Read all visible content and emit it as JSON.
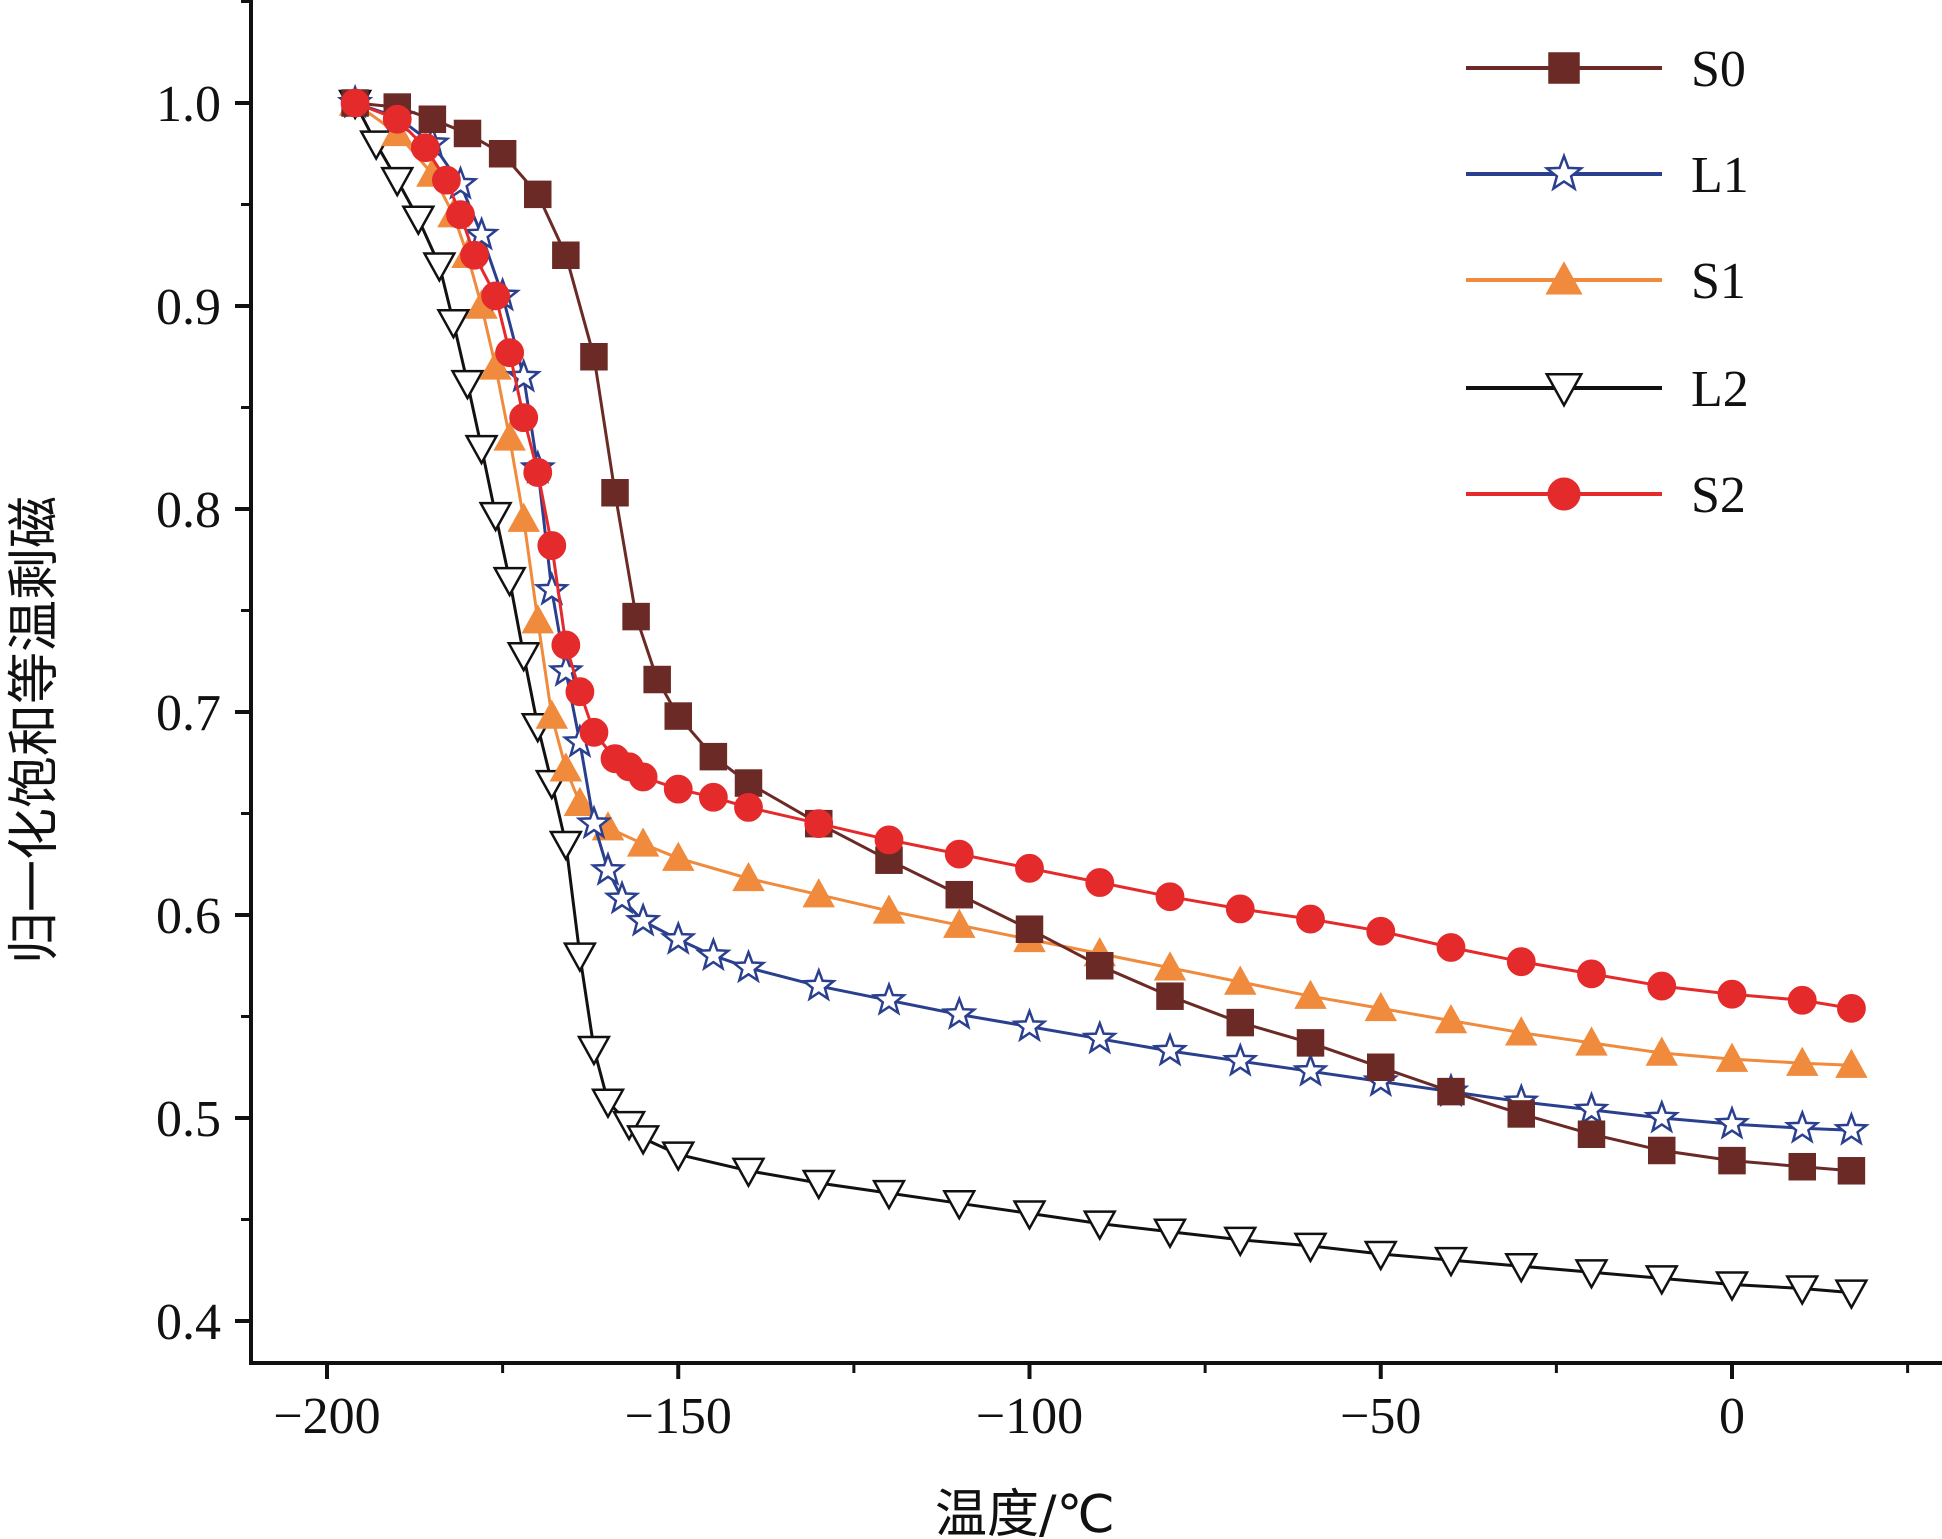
{
  "chart_data": {
    "type": "line",
    "title": "",
    "xlabel": "温度/℃",
    "ylabel": "归一化饱和等温剩磁",
    "xlim": [
      -210,
      30
    ],
    "ylim": [
      0.38,
      1.05
    ],
    "xticks": [
      -200,
      -150,
      -100,
      -50,
      0
    ],
    "xtick_labels": [
      "−200",
      "−150",
      "−100",
      "−50",
      "0"
    ],
    "yticks": [
      0.4,
      0.5,
      0.6,
      0.7,
      0.8,
      0.9,
      1.0
    ],
    "ytick_labels": [
      "0.4",
      "0.5",
      "0.6",
      "0.7",
      "0.8",
      "0.9",
      "1.0"
    ],
    "legend_position": "top-right",
    "series": [
      {
        "name": "S0",
        "color": "#6b2a26",
        "marker": "square",
        "filled": true,
        "x": [
          -196,
          -190,
          -185,
          -180,
          -175,
          -170,
          -166,
          -162,
          -159,
          -156,
          -153,
          -150,
          -145,
          -140,
          -130,
          -120,
          -110,
          -100,
          -90,
          -80,
          -70,
          -60,
          -50,
          -40,
          -30,
          -20,
          -10,
          0,
          10,
          17
        ],
        "y": [
          1.0,
          0.998,
          0.992,
          0.985,
          0.975,
          0.955,
          0.925,
          0.875,
          0.808,
          0.747,
          0.716,
          0.698,
          0.678,
          0.665,
          0.645,
          0.627,
          0.61,
          0.593,
          0.575,
          0.56,
          0.547,
          0.537,
          0.525,
          0.513,
          0.502,
          0.492,
          0.484,
          0.479,
          0.476,
          0.474
        ]
      },
      {
        "name": "L1",
        "color": "#2b3f8f",
        "marker": "star",
        "filled": false,
        "x": [
          -196,
          -190,
          -185,
          -181,
          -178,
          -175,
          -172,
          -170,
          -168,
          -166,
          -164,
          -162,
          -160,
          -158,
          -155,
          -150,
          -145,
          -140,
          -130,
          -120,
          -110,
          -100,
          -90,
          -80,
          -70,
          -60,
          -50,
          -40,
          -30,
          -20,
          -10,
          0,
          10,
          17
        ],
        "y": [
          1.0,
          0.993,
          0.98,
          0.96,
          0.935,
          0.905,
          0.865,
          0.82,
          0.76,
          0.72,
          0.685,
          0.645,
          0.622,
          0.608,
          0.597,
          0.588,
          0.58,
          0.574,
          0.565,
          0.558,
          0.551,
          0.545,
          0.539,
          0.533,
          0.528,
          0.523,
          0.518,
          0.513,
          0.508,
          0.504,
          0.5,
          0.497,
          0.495,
          0.494
        ]
      },
      {
        "name": "S1",
        "color": "#f08a3c",
        "marker": "triangle-up",
        "filled": true,
        "x": [
          -196,
          -190,
          -185,
          -182,
          -180,
          -178,
          -176,
          -174,
          -172,
          -170,
          -168,
          -166,
          -164,
          -160,
          -155,
          -150,
          -140,
          -130,
          -120,
          -110,
          -100,
          -90,
          -80,
          -70,
          -60,
          -50,
          -40,
          -30,
          -20,
          -10,
          0,
          10,
          17
        ],
        "y": [
          1.0,
          0.985,
          0.965,
          0.945,
          0.925,
          0.9,
          0.87,
          0.835,
          0.795,
          0.745,
          0.698,
          0.672,
          0.655,
          0.643,
          0.635,
          0.628,
          0.618,
          0.61,
          0.602,
          0.595,
          0.588,
          0.581,
          0.574,
          0.567,
          0.56,
          0.554,
          0.548,
          0.542,
          0.537,
          0.532,
          0.529,
          0.527,
          0.526
        ]
      },
      {
        "name": "L2",
        "color": "#111111",
        "marker": "triangle-down",
        "filled": false,
        "x": [
          -196,
          -193,
          -190,
          -187,
          -184,
          -182,
          -180,
          -178,
          -176,
          -174,
          -172,
          -170,
          -168,
          -166,
          -164,
          -162,
          -160,
          -157,
          -155,
          -150,
          -140,
          -130,
          -120,
          -110,
          -100,
          -90,
          -80,
          -70,
          -60,
          -50,
          -40,
          -30,
          -20,
          -10,
          0,
          10,
          17
        ],
        "y": [
          1.0,
          0.98,
          0.962,
          0.943,
          0.92,
          0.892,
          0.862,
          0.83,
          0.797,
          0.765,
          0.728,
          0.693,
          0.665,
          0.635,
          0.58,
          0.534,
          0.508,
          0.497,
          0.49,
          0.482,
          0.474,
          0.468,
          0.463,
          0.458,
          0.453,
          0.448,
          0.444,
          0.44,
          0.437,
          0.433,
          0.43,
          0.427,
          0.424,
          0.421,
          0.418,
          0.416,
          0.414
        ]
      },
      {
        "name": "S2",
        "color": "#e42a2a",
        "marker": "circle",
        "filled": true,
        "x": [
          -196,
          -190,
          -186,
          -183,
          -181,
          -179,
          -176,
          -174,
          -172,
          -170,
          -168,
          -166,
          -164,
          -162,
          -159,
          -157,
          -155,
          -150,
          -145,
          -140,
          -130,
          -120,
          -110,
          -100,
          -90,
          -80,
          -70,
          -60,
          -50,
          -40,
          -30,
          -20,
          -10,
          0,
          10,
          17
        ],
        "y": [
          1.0,
          0.992,
          0.978,
          0.962,
          0.945,
          0.925,
          0.905,
          0.877,
          0.845,
          0.818,
          0.782,
          0.733,
          0.71,
          0.69,
          0.677,
          0.673,
          0.668,
          0.662,
          0.658,
          0.653,
          0.645,
          0.637,
          0.63,
          0.623,
          0.616,
          0.609,
          0.603,
          0.598,
          0.592,
          0.584,
          0.577,
          0.571,
          0.565,
          0.561,
          0.558,
          0.554
        ]
      }
    ]
  }
}
